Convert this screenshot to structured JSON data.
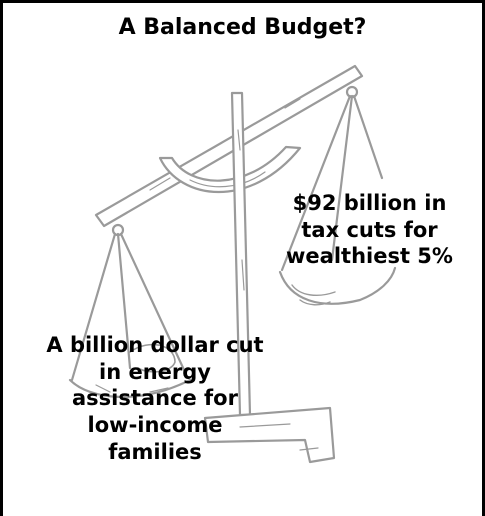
{
  "title": "A Balanced Budget?",
  "right_pan_label": [
    "$92 billion in",
    "tax cuts for",
    "wealthiest 5%"
  ],
  "left_pan_label": [
    "A billion dollar cut",
    "in energy",
    "assistance for",
    "low-income",
    "families"
  ],
  "icons": [
    "balance-scale-icon"
  ],
  "colors": {
    "text": "#000000",
    "sketch": "#9a9a9a",
    "background": "#ffffff"
  }
}
